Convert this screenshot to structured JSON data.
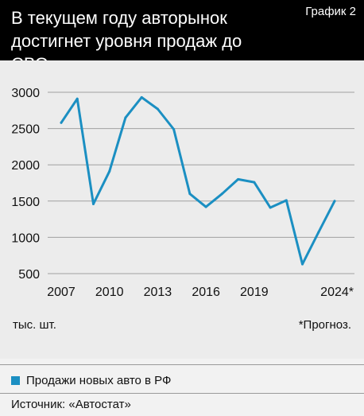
{
  "header": {
    "title": "В текущем году авторынок\nдостигнет уровня продаж до СВО",
    "tag": "График 2"
  },
  "colors": {
    "line": "#1b8fc2",
    "grid": "#a0a0a0",
    "header_bg": "#000000",
    "background": "#f2f2f2"
  },
  "chart_data": {
    "type": "line",
    "x": [
      2007,
      2008,
      2009,
      2010,
      2011,
      2012,
      2013,
      2014,
      2015,
      2016,
      2017,
      2018,
      2019,
      2020,
      2021,
      2022,
      2023,
      2024
    ],
    "series": [
      {
        "name": "Продажи новых авто в РФ",
        "values": [
          2580,
          2910,
          1460,
          1910,
          2650,
          2930,
          2770,
          2490,
          1600,
          1420,
          1600,
          1800,
          1760,
          1410,
          1510,
          630,
          1070,
          1500
        ]
      }
    ],
    "ylim": [
      500,
      3000
    ],
    "yticks": [
      "3000",
      "2500",
      "2000",
      "1500",
      "1000",
      "500"
    ],
    "yticks_values": [
      3000,
      2500,
      2000,
      1500,
      1000,
      500
    ],
    "xticks": [
      "2007",
      "2010",
      "2013",
      "2016",
      "2019",
      "2024*"
    ],
    "xticks_values": [
      2007,
      2010,
      2013,
      2016,
      2019,
      2024
    ],
    "ylabel": "тыс. шт.",
    "note": "*Прогноз.",
    "grid": true,
    "legend_position": "bottom-left"
  },
  "legend": {
    "label": "Продажи новых авто в РФ"
  },
  "source": "Источник: «Автостат»"
}
